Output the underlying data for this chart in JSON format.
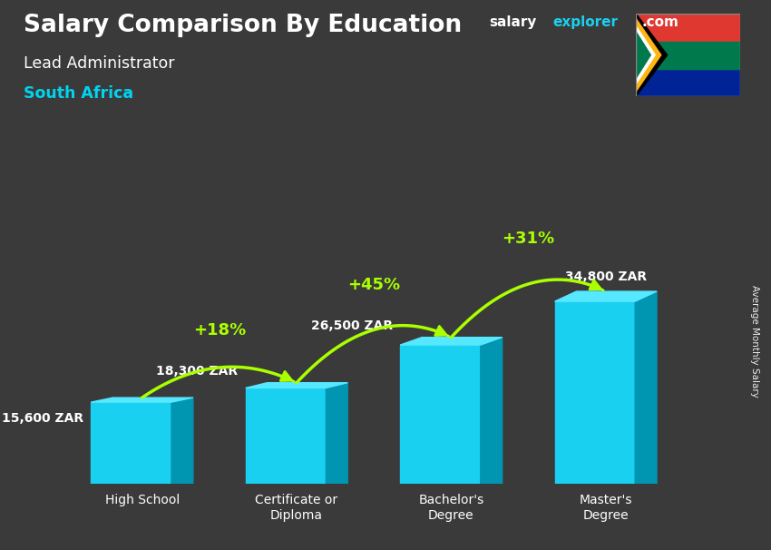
{
  "title": "Salary Comparison By Education",
  "subtitle": "Lead Administrator",
  "country": "South Africa",
  "categories": [
    "High School",
    "Certificate or\nDiploma",
    "Bachelor's\nDegree",
    "Master's\nDegree"
  ],
  "values": [
    15600,
    18300,
    26500,
    34800
  ],
  "labels": [
    "15,600 ZAR",
    "18,300 ZAR",
    "26,500 ZAR",
    "34,800 ZAR"
  ],
  "pct_changes": [
    "+18%",
    "+45%",
    "+31%"
  ],
  "bar_color_face": "#1ad0f0",
  "bar_color_top": "#55e8ff",
  "bar_color_side": "#0095b0",
  "bg_color": "#3a3a3a",
  "title_color": "#ffffff",
  "subtitle_color": "#ffffff",
  "country_color": "#00d4f0",
  "label_color": "#ffffff",
  "pct_color": "#aaff00",
  "arrow_color": "#aaff00",
  "ylabel_text": "Average Monthly Salary",
  "ylim": [
    0,
    40000
  ],
  "flag_colors": {
    "red": "#de3831",
    "blue": "#002395",
    "green": "#007a4d",
    "yellow": "#ffb612",
    "black": "#000000",
    "white": "#ffffff"
  }
}
